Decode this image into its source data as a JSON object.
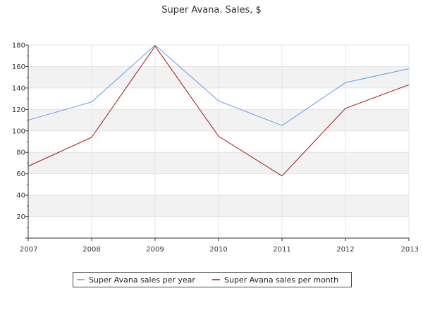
{
  "chart_data": {
    "type": "line",
    "title": "Super Avana. Sales, $",
    "xlabel": "",
    "ylabel": "",
    "x": [
      "2007",
      "2008",
      "2009",
      "2010",
      "2011",
      "2012",
      "2013"
    ],
    "ylim": [
      0,
      180
    ],
    "yticks": [
      "20",
      "40",
      "60",
      "80",
      "100",
      "120",
      "140",
      "160",
      "180"
    ],
    "grid": "horizontal alternating bands with light vertical gridlines",
    "legend_position": "bottom-center",
    "series": [
      {
        "name": "Super Avana sales per year",
        "color": "#6699ee",
        "values": [
          110,
          127,
          180,
          128,
          105,
          145,
          158
        ]
      },
      {
        "name": "Super Avana sales per month",
        "color": "#aa1111",
        "values": [
          67,
          94,
          179,
          95,
          58,
          121,
          143
        ]
      }
    ]
  }
}
